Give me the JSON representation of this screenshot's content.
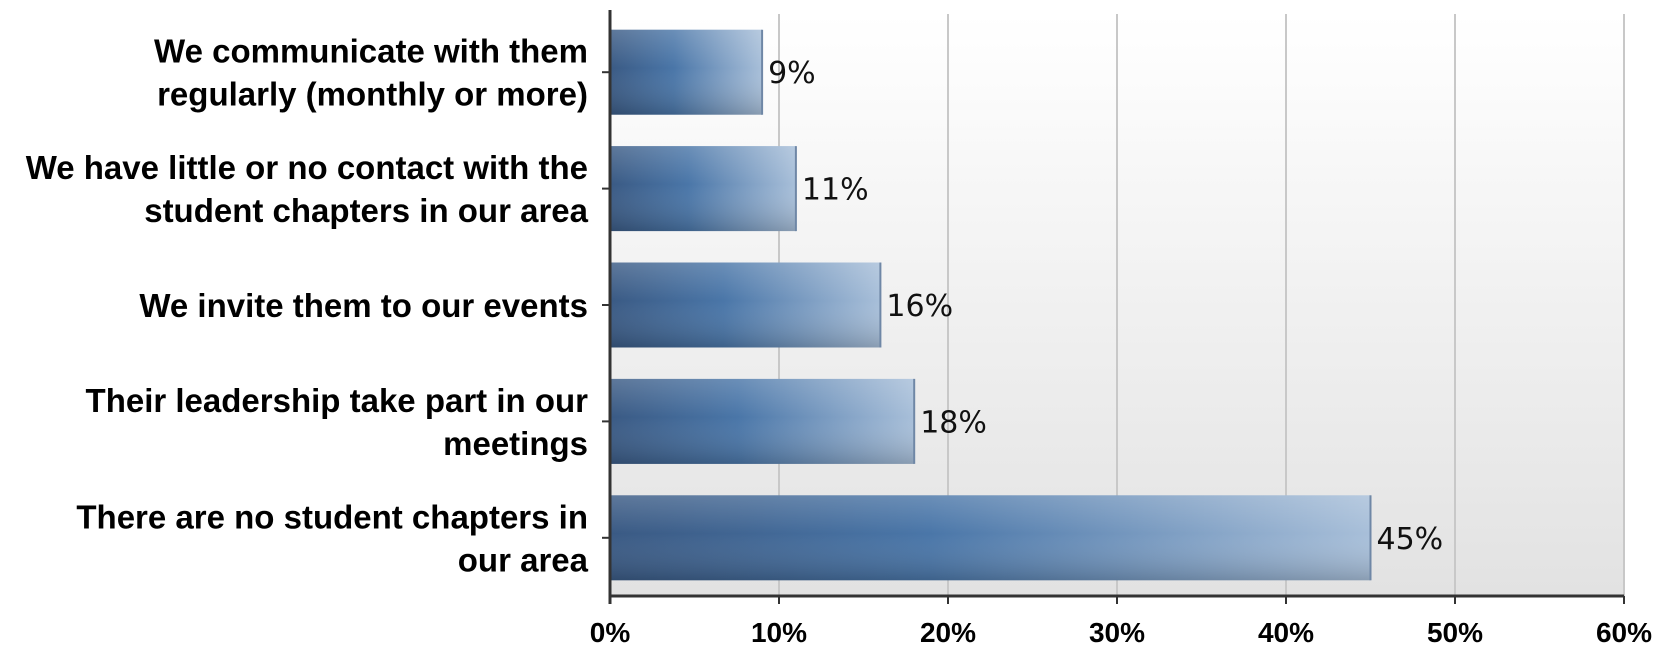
{
  "chart_data": {
    "type": "bar",
    "orientation": "horizontal",
    "categories": [
      [
        "We communicate with them",
        "regularly (monthly or more)"
      ],
      [
        "We have little or no contact with the",
        "student chapters in our area"
      ],
      [
        "We invite them to our events"
      ],
      [
        "Their leadership take part in our",
        "meetings"
      ],
      [
        "There are no student chapters in",
        "our area"
      ]
    ],
    "values": [
      9,
      11,
      16,
      18,
      45
    ],
    "value_labels": [
      "9%",
      "11%",
      "16%",
      "18%",
      "45%"
    ],
    "xlim": [
      0,
      60
    ],
    "x_ticks": [
      0,
      10,
      20,
      30,
      40,
      50,
      60
    ],
    "x_tick_labels": [
      "0%",
      "10%",
      "20%",
      "30%",
      "40%",
      "50%",
      "60%"
    ],
    "grid": "vertical",
    "legend": "none",
    "colors": {
      "bar_dark": "#3a5a84",
      "bar_mid": "#4a76a8",
      "bar_light": "#a8bfd9",
      "plot_bg_top": "#ffffff",
      "plot_bg_bottom": "#e2e2e2",
      "gridline": "#c8c8c8",
      "axis": "#333333"
    }
  }
}
